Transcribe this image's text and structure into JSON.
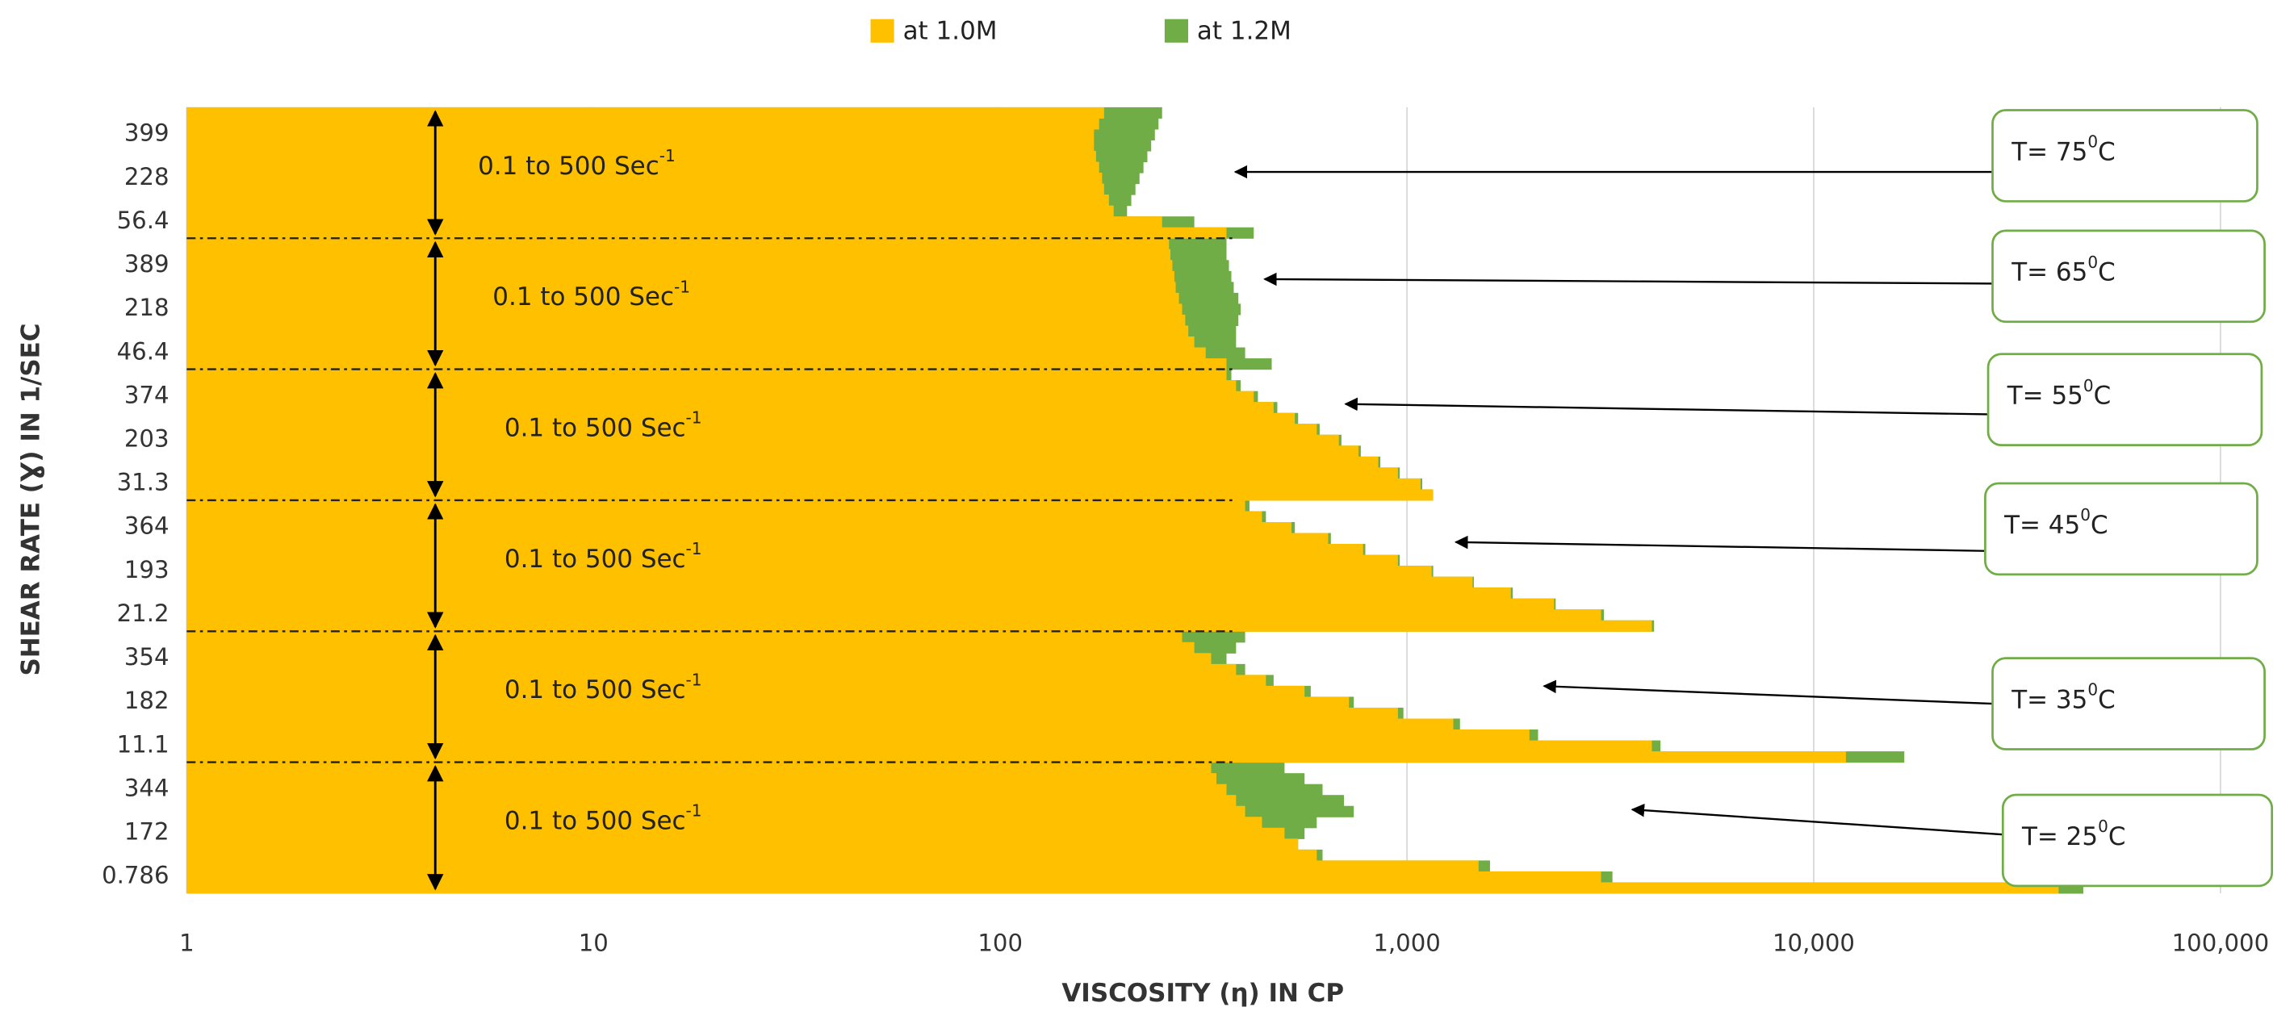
{
  "chart_data": {
    "type": "bar",
    "orientation": "horizontal",
    "overlap": true,
    "xlabel": "VISCOSITY (η) IN CP",
    "ylabel": "SHEAR RATE (Ɣ) IN 1/SEC",
    "xlog": true,
    "xlim": [
      1,
      100000
    ],
    "xticks": [
      1,
      10,
      100,
      {
        "value": 1000,
        "label": "1,000"
      },
      {
        "value": 10000,
        "label": "10,000"
      },
      {
        "value": 100000,
        "label": "100,000"
      }
    ],
    "grid": true,
    "legend": "top",
    "categories": [
      null,
      null,
      "399",
      null,
      null,
      null,
      "228",
      null,
      null,
      null,
      "56.4",
      null,
      null,
      null,
      "389",
      null,
      null,
      null,
      "218",
      null,
      null,
      null,
      "46.4",
      null,
      null,
      null,
      "374",
      null,
      null,
      null,
      "203",
      null,
      null,
      null,
      "31.3",
      null,
      null,
      null,
      "364",
      null,
      null,
      null,
      "193",
      null,
      null,
      null,
      "21.2",
      null,
      null,
      null,
      "354",
      null,
      null,
      null,
      "182",
      null,
      null,
      null,
      "11.1",
      null,
      null,
      null,
      "344",
      null,
      null,
      null,
      "172",
      null,
      null,
      null,
      "0.786",
      null
    ],
    "series": [
      {
        "name": "at 1.0M",
        "color": "#ffc000",
        "values": [
          180,
          175,
          170,
          170,
          172,
          175,
          178,
          180,
          185,
          190,
          250,
          360,
          260,
          262,
          265,
          268,
          270,
          275,
          280,
          285,
          290,
          300,
          320,
          360,
          360,
          380,
          420,
          470,
          530,
          600,
          680,
          760,
          850,
          950,
          1080,
          1160,
          400,
          440,
          520,
          640,
          780,
          950,
          1150,
          1450,
          1800,
          2300,
          3000,
          4000,
          280,
          300,
          330,
          380,
          450,
          560,
          720,
          950,
          1300,
          2000,
          4000,
          12000,
          330,
          340,
          360,
          380,
          400,
          440,
          500,
          540,
          600,
          1500,
          3000,
          40000
        ]
      },
      {
        "name": "at 1.2M",
        "color": "#70ad47",
        "values": [
          250,
          245,
          240,
          235,
          230,
          225,
          220,
          215,
          210,
          205,
          300,
          420,
          360,
          360,
          365,
          370,
          375,
          385,
          390,
          385,
          380,
          380,
          400,
          465,
          370,
          390,
          430,
          480,
          540,
          610,
          690,
          770,
          860,
          960,
          1090,
          1150,
          410,
          450,
          530,
          650,
          790,
          960,
          1160,
          1460,
          1820,
          2320,
          3050,
          4050,
          400,
          380,
          360,
          400,
          470,
          580,
          740,
          980,
          1350,
          2100,
          4200,
          16700,
          500,
          560,
          620,
          700,
          740,
          600,
          560,
          540,
          620,
          1600,
          3200,
          46000
        ]
      }
    ],
    "range_labels": [
      {
        "text": "0.1 to 500 Sec",
        "sup": "-1"
      },
      {
        "text": "0.1 to 500 Sec",
        "sup": "-1"
      },
      {
        "text": "0.1 to 500 Sec",
        "sup": "-1"
      },
      {
        "text": "0.1 to 500 Sec",
        "sup": "-1"
      },
      {
        "text": "0.1 to 500 Sec",
        "sup": "-1"
      },
      {
        "text": "0.1 to 500 Sec",
        "sup": "-1"
      }
    ],
    "temperature_labels": [
      {
        "text": "T= 75",
        "sup": "0",
        "unit": "C"
      },
      {
        "text": "T= 65",
        "sup": "0",
        "unit": "C"
      },
      {
        "text": "T= 55",
        "sup": "0",
        "unit": "C"
      },
      {
        "text": "T= 45",
        "sup": "0",
        "unit": "C"
      },
      {
        "text": "T= 35",
        "sup": "0",
        "unit": "C"
      },
      {
        "text": "T= 25",
        "sup": "0",
        "unit": "C"
      }
    ]
  }
}
